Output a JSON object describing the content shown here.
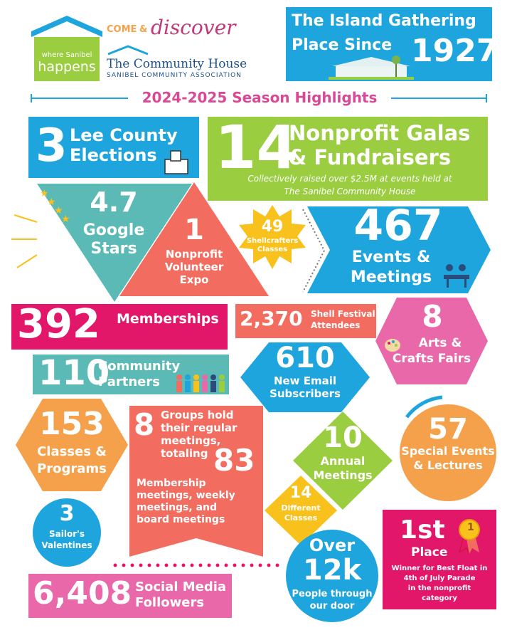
{
  "header": {
    "logo_tagline": [
      "where Sanibel",
      "happens"
    ],
    "come_text": "COME",
    "amp": "&",
    "discover_text": "discover",
    "org_name": "The Community House",
    "org_sub": "SANIBEL COMMUNITY ASSOCIATION",
    "banner_line1": "The Island Gathering",
    "banner_line2": "Place Since",
    "banner_year": "1927"
  },
  "season_title": "2024-2025 Season Highlights",
  "stats": {
    "elections": {
      "value": "3",
      "label": [
        "Lee County",
        "Elections"
      ]
    },
    "galas": {
      "value": "14",
      "label": [
        "Nonprofit Galas",
        "& Fundraisers"
      ],
      "note": [
        "Collectively raised over $2.5M at events held at",
        "The Sanibel Community House"
      ]
    },
    "stars": {
      "value": "4.7",
      "label": [
        "Google",
        "Stars"
      ]
    },
    "expo": {
      "value": "1",
      "label": [
        "Nonprofit",
        "Volunteer",
        "Expo"
      ]
    },
    "shellcrafters": {
      "value": "49",
      "label": [
        "Shellcrafters",
        "Classes"
      ]
    },
    "events": {
      "value": "467",
      "label": [
        "Events &",
        "Meetings"
      ]
    },
    "memberships": {
      "value": "392",
      "label": "Memberships"
    },
    "shell_festival": {
      "value": "2,370",
      "label": [
        "Shell Festival",
        "Attendees"
      ]
    },
    "arts": {
      "value": "8",
      "label": [
        "Arts &",
        "Crafts Fairs"
      ]
    },
    "partners": {
      "value": "110",
      "label": [
        "Community",
        "Partners"
      ]
    },
    "email": {
      "value": "610",
      "label": [
        "New Email",
        "Subscribers"
      ]
    },
    "classes": {
      "value": "153",
      "label": [
        "Classes &",
        "Programs"
      ]
    },
    "groups": {
      "value": "8",
      "label": [
        "Groups hold",
        "their regular",
        "meetings,",
        "totaling"
      ],
      "total": "83",
      "note": [
        "Membership",
        "meetings, weekly",
        "meetings, and",
        "board meetings"
      ]
    },
    "annual": {
      "value": "10",
      "label": [
        "Annual",
        "Meetings"
      ]
    },
    "special": {
      "value": "57",
      "label": [
        "Special Events",
        "& Lectures"
      ]
    },
    "sailors": {
      "value": "3",
      "label": [
        "Sailor's",
        "Valentines"
      ]
    },
    "different": {
      "value": "14",
      "label": [
        "Different",
        "Classes"
      ]
    },
    "visitors": {
      "value_line1": "Over",
      "value_line2": "12k",
      "label": [
        "People through",
        "our door"
      ]
    },
    "float": {
      "value": "1st",
      "label": "Place",
      "badge": "1",
      "note": [
        "Winner for Best Float in",
        "4th of July Parade",
        "in the nonprofit",
        "category"
      ]
    },
    "social": {
      "value": "6,408",
      "label": [
        "Social Media",
        "Followers"
      ]
    }
  },
  "colors": {
    "blue": "#1ea5de",
    "green": "#9acd3f",
    "teal": "#5bbab5",
    "coral": "#f26d60",
    "yellow": "#f9c11c",
    "magenta": "#e3176a",
    "pink": "#e868a9",
    "orange": "#f5a04a",
    "title": "#d94a96"
  }
}
